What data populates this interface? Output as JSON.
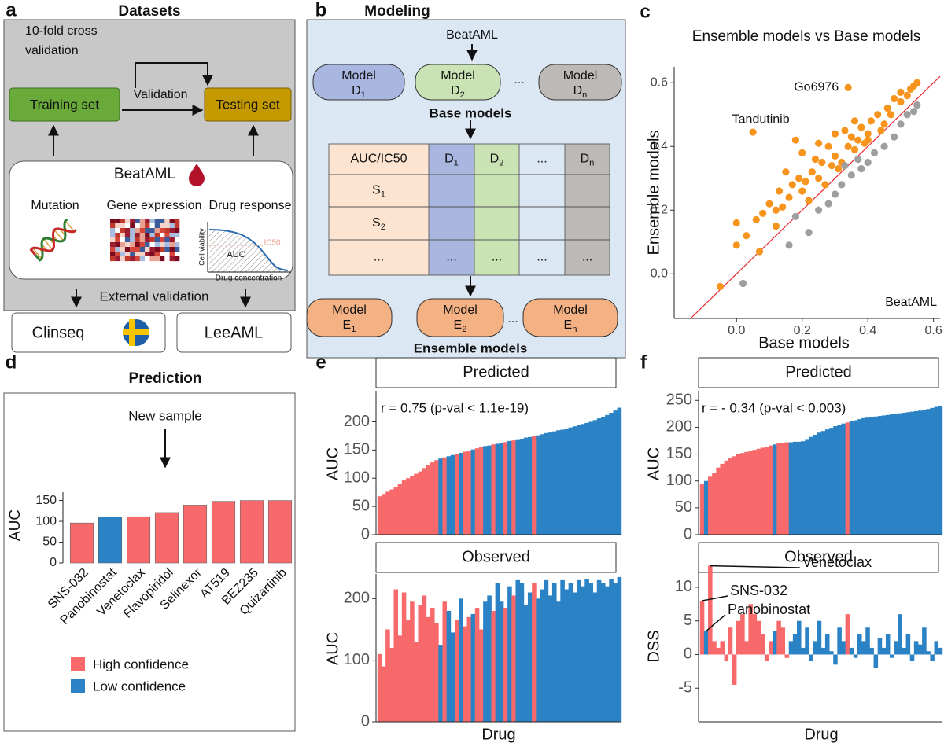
{
  "panel_labels": [
    "a",
    "b",
    "c",
    "d",
    "e",
    "f"
  ],
  "datasets": {
    "title": "Datasets",
    "cv_note": [
      "10-fold cross",
      "validation"
    ],
    "training": "Training set",
    "validation": "Validation",
    "testing": "Testing set",
    "source": "BeatAML",
    "data_types": [
      "Mutation",
      "Gene expression",
      "Drug response"
    ],
    "curve": {
      "y_label": "Cell viability",
      "x_label": "Drug concentration",
      "area": "AUC",
      "ic50": "IC50"
    },
    "external": "External validation",
    "cohorts": [
      "Clinseq",
      "LeeAML"
    ]
  },
  "modeling": {
    "title": "Modeling",
    "source": "BeatAML",
    "base_models": [
      {
        "name": "Model",
        "symbol": "D",
        "index": "1"
      },
      {
        "name": "Model",
        "symbol": "D",
        "index": "2"
      },
      {
        "name": "Model",
        "symbol": "D",
        "index": "n"
      }
    ],
    "base_ellipsis": "...",
    "base_caption": "Base models",
    "table": {
      "corner": "AUC/IC50",
      "columns": [
        {
          "symbol": "D",
          "index": "1"
        },
        {
          "symbol": "D",
          "index": "2"
        },
        {
          "text": "..."
        },
        {
          "symbol": "D",
          "index": "n"
        }
      ],
      "rows": [
        {
          "symbol": "S",
          "index": "1"
        },
        {
          "symbol": "S",
          "index": "2"
        },
        {
          "text": "..."
        }
      ],
      "last_row_cells": [
        "...",
        "...",
        "...",
        "..."
      ]
    },
    "ensemble_models": [
      {
        "name": "Model",
        "symbol": "E",
        "index": "1"
      },
      {
        "name": "Model",
        "symbol": "E",
        "index": "2"
      },
      {
        "name": "Model",
        "symbol": "E",
        "index": "n"
      }
    ],
    "ensemble_ellipsis": "...",
    "ensemble_caption": "Ensemble models"
  },
  "chart_data": [
    {
      "type": "scatter",
      "title": "Ensemble models vs Base models",
      "xlabel": "Base models",
      "ylabel": "Ensemble models",
      "dataset_label": "BeatAML",
      "xlim": [
        -0.19,
        0.62
      ],
      "ylim": [
        -0.14,
        0.65
      ],
      "xticks": [
        {
          "value": 0,
          "label": "0.0"
        },
        0.2,
        0.4,
        0.6
      ],
      "yticks": [
        {
          "value": 0,
          "label": "0.0"
        },
        0.2,
        0.4,
        0.6
      ],
      "identity_line_color": "#e8262b",
      "annotations": [
        "Go6976",
        "Tandutinib"
      ],
      "series": [
        {
          "color": "#f7941d",
          "x": [
            0.34,
            0.05,
            -0.05,
            0.07,
            0,
            0.03,
            0,
            0.08,
            0.06,
            0.1,
            0.12,
            0.13,
            0.16,
            0.17,
            0.19,
            0.2,
            0.22,
            0.23,
            0.25,
            0.27,
            0.29,
            0.3,
            0.32,
            0.34,
            0.35,
            0.37,
            0.38,
            0.4,
            0.41,
            0.43,
            0.44,
            0.46,
            0.47,
            0.48,
            0.5,
            0.5,
            0.52,
            0.54,
            0.55,
            0.53,
            0.2,
            0.18,
            0.3,
            0.25,
            0.15,
            0.36,
            0.36,
            0.39,
            0.12,
            0.24,
            0.28,
            0.33,
            0.45,
            0.31,
            0.21,
            0.14,
            0.26,
            0.4
          ],
          "y": [
            0.585,
            0.445,
            -0.04,
            0.07,
            0.09,
            0.12,
            0.16,
            0.19,
            0.17,
            0.22,
            0.2,
            0.26,
            0.24,
            0.28,
            0.3,
            0.26,
            0.23,
            0.32,
            0.3,
            0.28,
            0.34,
            0.37,
            0.35,
            0.4,
            0.43,
            0.42,
            0.46,
            0.44,
            0.48,
            0.5,
            0.45,
            0.52,
            0.5,
            0.55,
            0.54,
            0.57,
            0.56,
            0.59,
            0.6,
            0.58,
            0.38,
            0.42,
            0.44,
            0.41,
            0.32,
            0.48,
            0.39,
            0.41,
            0.15,
            0.36,
            0.4,
            0.45,
            0.47,
            0.33,
            0.29,
            0.21,
            0.35,
            0.42
          ]
        },
        {
          "color": "#9e9e9e",
          "x": [
            0.02,
            0.16,
            0.22,
            0.25,
            0.28,
            0.3,
            0.32,
            0.35,
            0.38,
            0.4,
            0.42,
            0.45,
            0.48,
            0.5,
            0.52,
            0.55,
            0.54,
            0.37,
            0.33,
            0.18
          ],
          "y": [
            -0.03,
            0.09,
            0.13,
            0.2,
            0.22,
            0.25,
            0.28,
            0.31,
            0.33,
            0.35,
            0.38,
            0.4,
            0.43,
            0.47,
            0.5,
            0.53,
            0.51,
            0.36,
            0.34,
            0.18
          ]
        }
      ]
    },
    {
      "type": "bar",
      "title": "Prediction",
      "annotation": "New sample",
      "ylabel": "AUC",
      "categories": [
        "SNS-032",
        "Panobinostat",
        "Venetoclax",
        "Flavopiridol",
        "Selinexor",
        "AT519",
        "BEZ235",
        "Quizartinib"
      ],
      "values": [
        96,
        110,
        111,
        121,
        139,
        148,
        150,
        150
      ],
      "colors": [
        "#f8696b",
        "#2b83c6",
        "#f8696b",
        "#f8696b",
        "#f8696b",
        "#f8696b",
        "#f8696b",
        "#f8696b"
      ],
      "ylim": [
        0,
        170
      ],
      "yticks": [
        0,
        50,
        100,
        150
      ],
      "legend": [
        {
          "name": "High confidence",
          "color": "#f8696b"
        },
        {
          "name": "Low confidence",
          "color": "#2b83c6"
        }
      ]
    },
    {
      "type": "bar",
      "title": "Predicted",
      "annotation": "r = 0.75 (p-val < 1.1e-19)",
      "ylabel": "AUC",
      "values": [
        68,
        72,
        76,
        80,
        85,
        90,
        96,
        100,
        104,
        108,
        112,
        118,
        124,
        128,
        132,
        135,
        137,
        139,
        141,
        143,
        145,
        147,
        149,
        151,
        153,
        155,
        157,
        158,
        160,
        161,
        163,
        164,
        166,
        167,
        169,
        170,
        172,
        173,
        175,
        176,
        178,
        180,
        181,
        183,
        185,
        186,
        188,
        190,
        192,
        194,
        196,
        198,
        200,
        203,
        206,
        209,
        212,
        216,
        220,
        225
      ],
      "colors": [
        "#f8696b",
        "#f8696b",
        "#f8696b",
        "#f8696b",
        "#f8696b",
        "#f8696b",
        "#f8696b",
        "#f8696b",
        "#f8696b",
        "#f8696b",
        "#f8696b",
        "#f8696b",
        "#f8696b",
        "#f8696b",
        "#f8696b",
        "#2b83c6",
        "#f8696b",
        "#2b83c6",
        "#2b83c6",
        "#f8696b",
        "#2b83c6",
        "#f8696b",
        "#f8696b",
        "#2b83c6",
        "#f8696b",
        "#f8696b",
        "#2b83c6",
        "#2b83c6",
        "#f8696b",
        "#2b83c6",
        "#2b83c6",
        "#f8696b",
        "#2b83c6",
        "#f8696b",
        "#2b83c6",
        "#2b83c6",
        "#2b83c6",
        "#2b83c6",
        "#f8696b",
        "#2b83c6",
        "#2b83c6",
        "#2b83c6",
        "#2b83c6",
        "#2b83c6",
        "#2b83c6",
        "#2b83c6",
        "#2b83c6",
        "#2b83c6",
        "#2b83c6",
        "#2b83c6",
        "#2b83c6",
        "#2b83c6",
        "#2b83c6",
        "#2b83c6",
        "#2b83c6",
        "#2b83c6",
        "#2b83c6",
        "#2b83c6",
        "#2b83c6",
        "#2b83c6"
      ],
      "ylim": [
        0,
        255
      ],
      "yticks": [
        0,
        50,
        100,
        150,
        200
      ]
    },
    {
      "type": "bar",
      "title": "Observed",
      "ylabel": "AUC",
      "xlabel": "Drug",
      "values": [
        110,
        90,
        150,
        120,
        215,
        140,
        210,
        165,
        195,
        130,
        190,
        205,
        170,
        185,
        160,
        125,
        195,
        180,
        145,
        165,
        200,
        155,
        170,
        175,
        185,
        150,
        195,
        205,
        180,
        225,
        195,
        185,
        220,
        205,
        230,
        225,
        190,
        210,
        225,
        200,
        215,
        230,
        205,
        225,
        195,
        230,
        215,
        225,
        210,
        230,
        220,
        232,
        225,
        210,
        230,
        225,
        220,
        232,
        225,
        235
      ],
      "colors": [
        "#f8696b",
        "#f8696b",
        "#f8696b",
        "#f8696b",
        "#f8696b",
        "#f8696b",
        "#f8696b",
        "#f8696b",
        "#f8696b",
        "#f8696b",
        "#f8696b",
        "#f8696b",
        "#f8696b",
        "#f8696b",
        "#f8696b",
        "#2b83c6",
        "#f8696b",
        "#2b83c6",
        "#2b83c6",
        "#f8696b",
        "#2b83c6",
        "#f8696b",
        "#f8696b",
        "#2b83c6",
        "#f8696b",
        "#f8696b",
        "#2b83c6",
        "#2b83c6",
        "#f8696b",
        "#2b83c6",
        "#2b83c6",
        "#f8696b",
        "#2b83c6",
        "#f8696b",
        "#2b83c6",
        "#2b83c6",
        "#2b83c6",
        "#2b83c6",
        "#f8696b",
        "#2b83c6",
        "#2b83c6",
        "#2b83c6",
        "#2b83c6",
        "#2b83c6",
        "#2b83c6",
        "#2b83c6",
        "#2b83c6",
        "#2b83c6",
        "#2b83c6",
        "#2b83c6",
        "#2b83c6",
        "#2b83c6",
        "#2b83c6",
        "#2b83c6",
        "#2b83c6",
        "#2b83c6",
        "#2b83c6",
        "#2b83c6",
        "#2b83c6",
        "#2b83c6"
      ],
      "ylim": [
        0,
        240
      ],
      "yticks": [
        0,
        100,
        200
      ]
    },
    {
      "type": "bar",
      "title": "Predicted",
      "annotation": "r = - 0.34 (p-val < 0.003)",
      "ylabel": "AUC",
      "values": [
        95,
        100,
        108,
        115,
        125,
        132,
        138,
        142,
        146,
        150,
        152,
        154,
        156,
        158,
        160,
        162,
        164,
        166,
        168,
        170,
        171,
        172,
        172,
        173,
        173,
        174,
        178,
        182,
        186,
        190,
        193,
        196,
        199,
        202,
        205,
        207,
        209,
        211,
        213,
        215,
        217,
        218,
        219,
        220,
        221,
        222,
        223,
        224,
        225,
        226,
        227,
        228,
        229,
        230,
        231,
        232,
        234,
        236,
        238,
        240
      ],
      "colors": [
        "#f8696b",
        "#2b83c6",
        "#f8696b",
        "#f8696b",
        "#f8696b",
        "#f8696b",
        "#f8696b",
        "#f8696b",
        "#f8696b",
        "#f8696b",
        "#f8696b",
        "#f8696b",
        "#f8696b",
        "#f8696b",
        "#f8696b",
        "#f8696b",
        "#f8696b",
        "#f8696b",
        "#2b83c6",
        "#f8696b",
        "#f8696b",
        "#f8696b",
        "#2b83c6",
        "#2b83c6",
        "#2b83c6",
        "#2b83c6",
        "#2b83c6",
        "#2b83c6",
        "#2b83c6",
        "#2b83c6",
        "#2b83c6",
        "#2b83c6",
        "#2b83c6",
        "#2b83c6",
        "#2b83c6",
        "#2b83c6",
        "#f8696b",
        "#2b83c6",
        "#2b83c6",
        "#2b83c6",
        "#2b83c6",
        "#2b83c6",
        "#2b83c6",
        "#2b83c6",
        "#2b83c6",
        "#2b83c6",
        "#2b83c6",
        "#2b83c6",
        "#2b83c6",
        "#2b83c6",
        "#2b83c6",
        "#2b83c6",
        "#2b83c6",
        "#2b83c6",
        "#2b83c6",
        "#2b83c6",
        "#2b83c6",
        "#2b83c6",
        "#2b83c6",
        "#2b83c6"
      ],
      "ylim": [
        0,
        268
      ],
      "yticks": [
        0,
        50,
        100,
        150,
        200,
        250
      ]
    },
    {
      "type": "bar",
      "title": "Observed",
      "ylabel": "DSS",
      "xlabel": "Drug",
      "annotations": [
        "SNS-032",
        "Venetoclax",
        "Panobinostat"
      ],
      "values": [
        8,
        3.5,
        13.2,
        2,
        1,
        2,
        -1,
        4,
        -4.5,
        5,
        6,
        2,
        7.5,
        6,
        5,
        3,
        -1,
        2,
        3.5,
        5,
        4,
        -0.5,
        2,
        3,
        5,
        1,
        4,
        -1,
        2,
        5,
        1,
        3,
        0.5,
        -1.5,
        4,
        2,
        6,
        1,
        -0.5,
        3,
        2,
        4,
        1,
        -2,
        2.5,
        1,
        3,
        -0.5,
        2,
        6,
        1,
        3,
        -1,
        2,
        1.5,
        4,
        0.5,
        -1,
        2,
        1
      ],
      "colors": [
        "#f8696b",
        "#2b83c6",
        "#f8696b",
        "#f8696b",
        "#f8696b",
        "#f8696b",
        "#f8696b",
        "#f8696b",
        "#f8696b",
        "#f8696b",
        "#f8696b",
        "#f8696b",
        "#f8696b",
        "#f8696b",
        "#f8696b",
        "#f8696b",
        "#f8696b",
        "#f8696b",
        "#2b83c6",
        "#f8696b",
        "#f8696b",
        "#f8696b",
        "#2b83c6",
        "#2b83c6",
        "#2b83c6",
        "#2b83c6",
        "#2b83c6",
        "#2b83c6",
        "#2b83c6",
        "#2b83c6",
        "#2b83c6",
        "#2b83c6",
        "#2b83c6",
        "#2b83c6",
        "#2b83c6",
        "#2b83c6",
        "#f8696b",
        "#2b83c6",
        "#2b83c6",
        "#2b83c6",
        "#2b83c6",
        "#2b83c6",
        "#2b83c6",
        "#2b83c6",
        "#2b83c6",
        "#2b83c6",
        "#2b83c6",
        "#2b83c6",
        "#2b83c6",
        "#2b83c6",
        "#2b83c6",
        "#2b83c6",
        "#2b83c6",
        "#2b83c6",
        "#2b83c6",
        "#2b83c6",
        "#2b83c6",
        "#2b83c6",
        "#2b83c6",
        "#2b83c6"
      ],
      "ylim": [
        -10,
        13.5
      ],
      "yticks": [
        -5,
        0,
        5,
        10
      ]
    }
  ]
}
